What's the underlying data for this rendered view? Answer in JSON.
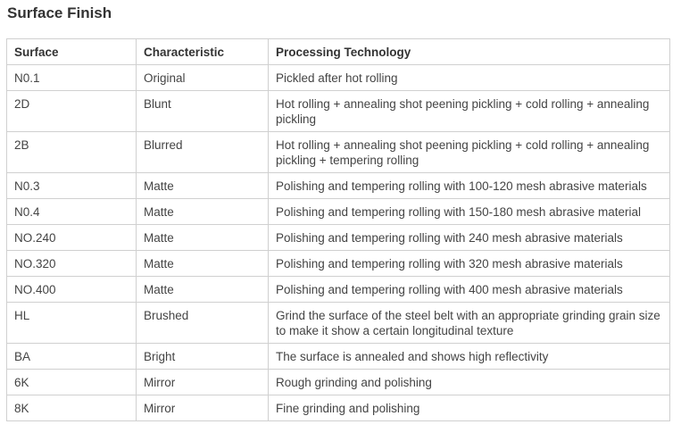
{
  "title": "Surface Finish",
  "table": {
    "headers": [
      "Surface",
      "Characteristic",
      "Processing Technology"
    ],
    "rows": [
      [
        "N0.1",
        "Original",
        "Pickled after hot rolling"
      ],
      [
        "2D",
        "Blunt",
        "Hot rolling + annealing shot peening pickling + cold rolling + annealing pickling"
      ],
      [
        "2B",
        "Blurred",
        "Hot rolling + annealing shot peening pickling + cold rolling + annealing pickling + tempering rolling"
      ],
      [
        "N0.3",
        "Matte",
        "Polishing and tempering rolling with 100-120 mesh abrasive materials"
      ],
      [
        "N0.4",
        "Matte",
        "Polishing and tempering rolling with 150-180 mesh abrasive material"
      ],
      [
        "NO.240",
        "Matte",
        "Polishing and tempering rolling with 240 mesh abrasive materials"
      ],
      [
        "NO.320",
        "Matte",
        "Polishing and tempering rolling with 320 mesh abrasive materials"
      ],
      [
        "NO.400",
        "Matte",
        "Polishing and tempering rolling with 400 mesh abrasive materials"
      ],
      [
        "HL",
        "Brushed",
        "Grind the surface of the steel belt with an appropriate grinding grain size to make it show a certain longitudinal texture"
      ],
      [
        "BA",
        "Bright",
        "The surface is annealed and shows high reflectivity"
      ],
      [
        "6K",
        "Mirror",
        "Rough grinding and polishing"
      ],
      [
        "8K",
        "Mirror",
        "Fine grinding and polishing"
      ]
    ]
  }
}
